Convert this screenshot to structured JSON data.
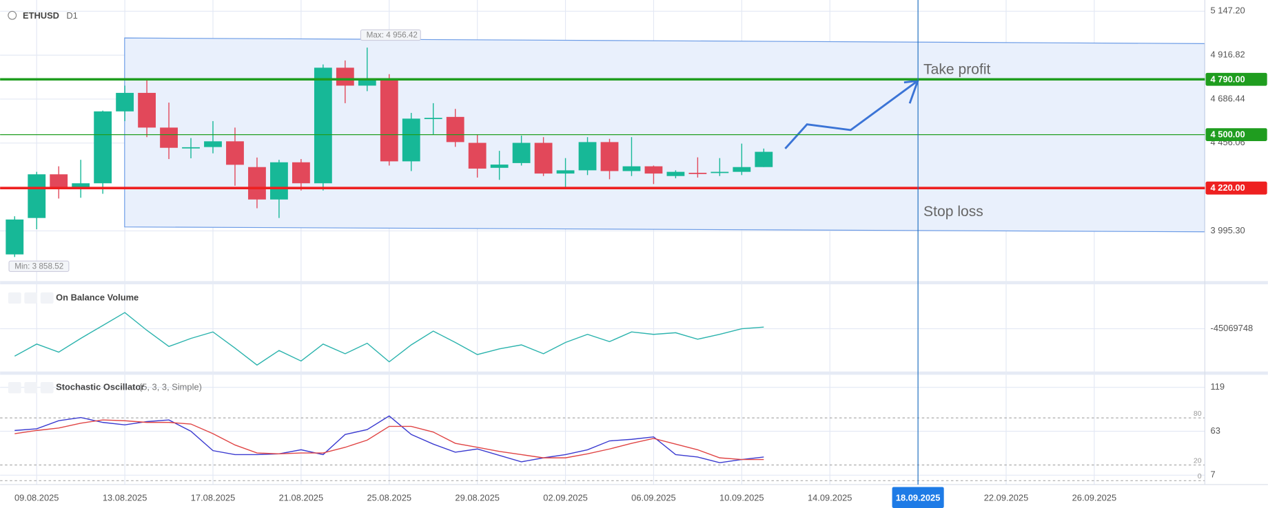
{
  "chart_data": [
    {
      "type": "candlestick",
      "symbol": "ETHUSD",
      "timeframe": "D1",
      "x": [
        "08.08.2025",
        "09.08.2025",
        "10.08.2025",
        "11.08.2025",
        "12.08.2025",
        "13.08.2025",
        "14.08.2025",
        "15.08.2025",
        "16.08.2025",
        "17.08.2025",
        "18.08.2025",
        "19.08.2025",
        "20.08.2025",
        "21.08.2025",
        "22.08.2025",
        "23.08.2025",
        "24.08.2025",
        "25.08.2025",
        "26.08.2025",
        "27.08.2025",
        "28.08.2025",
        "29.08.2025",
        "30.08.2025",
        "31.08.2025",
        "01.09.2025",
        "02.09.2025",
        "03.09.2025",
        "04.09.2025",
        "05.09.2025",
        "06.09.2025",
        "07.09.2025",
        "08.09.2025",
        "09.09.2025",
        "10.09.2025",
        "11.09.2025"
      ],
      "open": [
        3872,
        4063,
        4292,
        4224,
        4245,
        4622,
        4719,
        4537,
        4431,
        4435,
        4465,
        4330,
        4160,
        4355,
        4245,
        4851,
        4757,
        4792,
        4360,
        4584,
        4593,
        4457,
        4326,
        4351,
        4457,
        4296,
        4313,
        4461,
        4309,
        4334,
        4283,
        4300,
        4300,
        4305,
        4330
      ],
      "high": [
        4072,
        4305,
        4334,
        4368,
        4626,
        4757,
        4787,
        4668,
        4482,
        4571,
        4537,
        4380,
        4368,
        4372,
        4868,
        4889,
        4956.42,
        4817,
        4614,
        4665,
        4635,
        4500,
        4415,
        4495,
        4487,
        4377,
        4487,
        4478,
        4487,
        4338,
        4313,
        4381,
        4377,
        4453,
        4427
      ],
      "low": [
        3858.52,
        4004,
        4165,
        4169,
        4190,
        4571,
        4487,
        4372,
        4376,
        4402,
        4232,
        4114,
        4063,
        4207,
        4207,
        4665,
        4728,
        4338,
        4309,
        4500,
        4436,
        4275,
        4263,
        4338,
        4283,
        4224,
        4288,
        4266,
        4283,
        4241,
        4271,
        4275,
        4283,
        4288,
        4330
      ],
      "close": [
        4055,
        4292,
        4220,
        4245,
        4622,
        4719,
        4537,
        4431,
        4434,
        4465,
        4342,
        4160,
        4355,
        4245,
        4851,
        4757,
        4792,
        4360,
        4584,
        4588,
        4461,
        4322,
        4343,
        4457,
        4296,
        4313,
        4461,
        4309,
        4334,
        4296,
        4305,
        4296,
        4305,
        4330,
        4410
      ],
      "up_color": "#17b897",
      "down_color": "#e2485a",
      "xlim": [
        "07.08.2025",
        "02.10.2025"
      ],
      "xticks": [
        "09.08.2025",
        "13.08.2025",
        "17.08.2025",
        "21.08.2025",
        "25.08.2025",
        "29.08.2025",
        "02.09.2025",
        "06.09.2025",
        "10.09.2025",
        "14.09.2025",
        "18.09.2025",
        "22.09.2025",
        "26.09.2025"
      ],
      "crosshair": "18.09.2025",
      "ylim": [
        3745,
        5206
      ],
      "yticks": [
        {
          "value": 5147.2,
          "label": "5 147.20"
        },
        {
          "value": 4916.82,
          "label": "4 916.82"
        },
        {
          "value": 4686.44,
          "label": "4 686.44"
        },
        {
          "value": 4456.06,
          "label": "4 456.06"
        },
        {
          "value": 3995.3,
          "label": "3 995.30"
        }
      ],
      "max_label": "Max: 4 956.42",
      "min_label": "Min: 3 858.52",
      "levels": [
        {
          "value": 4790,
          "label": "4 790.00",
          "color": "#1f9d1f",
          "width": 3
        },
        {
          "value": 4500,
          "label": "4 500.00",
          "color": "#1f9d1f",
          "width": 1
        },
        {
          "value": 4220,
          "label": "4 220.00",
          "color": "#ee2020",
          "width": 3
        }
      ],
      "annotations": [
        "Take profit",
        "Stop loss"
      ],
      "grid": true
    },
    {
      "type": "line",
      "title": "On Balance Volume",
      "color": "#2bb3ad",
      "values": [
        -62070000,
        -54570000,
        -59570000,
        -51070000,
        -43070000,
        -35070000,
        -46070000,
        -56070000,
        -51070000,
        -47070000,
        -57070000,
        -67570000,
        -58570000,
        -65070000,
        -54570000,
        -60570000,
        -54070000,
        -65570000,
        -55070000,
        -46570000,
        -53570000,
        -61070000,
        -57570000,
        -55070000,
        -60570000,
        -53570000,
        -48570000,
        -53070000,
        -47070000,
        -48570000,
        -47570000,
        -51570000,
        -48570000,
        -45070000,
        -44070000
      ],
      "ylim": [
        -71570000,
        -19070000
      ],
      "yticks": [
        -45069748
      ],
      "grid": true
    },
    {
      "type": "line",
      "title": "Stochastic Oscillator",
      "subtitle": "(5, 3, 3, Simple)",
      "series": [
        {
          "color": "#3a3ad0",
          "values": [
            64.0,
            66.1,
            76.4,
            80.5,
            74.3,
            71.2,
            75.3,
            77.4,
            63,
            38.3,
            33.2,
            33.2,
            34.2,
            39.4,
            33.2,
            58.9,
            65.1,
            82.5,
            58.9,
            46.6,
            36.3,
            40.4,
            32.2,
            24.0,
            29.1,
            33.2,
            39.4,
            50.7,
            52.7,
            55.8,
            33.2,
            30.1,
            22.9,
            27.0,
            30.1
          ]
        },
        {
          "color": "#e04444",
          "values": [
            59.9,
            64.0,
            67.1,
            73.3,
            77.4,
            76.4,
            74.3,
            74.3,
            72.2,
            59.9,
            45.5,
            35.3,
            34.2,
            35.3,
            35.3,
            42.5,
            51.7,
            69.2,
            69.2,
            62.0,
            47.6,
            42.5,
            37.3,
            33.2,
            29.1,
            29.1,
            34.2,
            40.4,
            47.6,
            53.8,
            46.6,
            39.4,
            29.1,
            27.0,
            27.0
          ]
        }
      ],
      "ylim": [
        -5,
        133
      ],
      "yticks": [
        7,
        63,
        119
      ],
      "levels": [
        0,
        20,
        80
      ],
      "grid": true
    }
  ]
}
